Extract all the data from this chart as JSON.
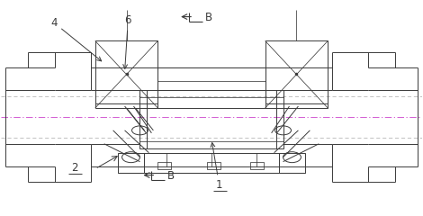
{
  "bg_color": "#ffffff",
  "line_color": "#3a3a3a",
  "center_line_color": "#cc44cc",
  "figsize": [
    4.7,
    2.4
  ],
  "dpi": 100
}
